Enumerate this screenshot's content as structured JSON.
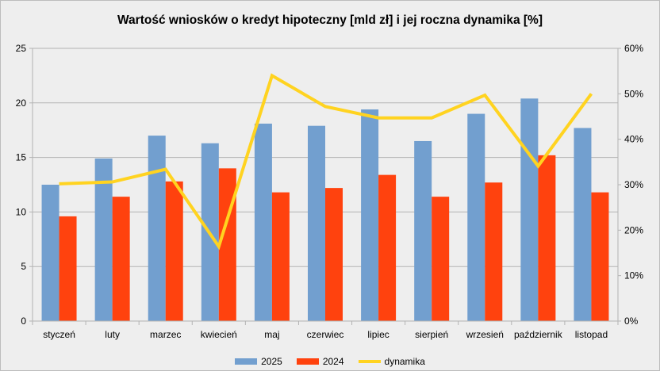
{
  "chart_data": {
    "type": "bar",
    "title": "Wartość wniosków o kredyt hipoteczny [mld zł] i jej roczna dynamika [%]",
    "categories": [
      "styczeń",
      "luty",
      "marzec",
      "kwiecień",
      "maj",
      "czerwiec",
      "lipiec",
      "sierpień",
      "wrzesień",
      "październik",
      "listopad"
    ],
    "series": [
      {
        "name": "2025",
        "type": "bar",
        "axis": "left",
        "color": "#729fcf",
        "values": [
          12.5,
          14.9,
          17.0,
          16.3,
          18.1,
          17.9,
          19.4,
          16.5,
          19.0,
          20.4,
          17.7
        ]
      },
      {
        "name": "2024",
        "type": "bar",
        "axis": "left",
        "color": "#ff420e",
        "values": [
          9.6,
          11.4,
          12.8,
          14.0,
          11.8,
          12.2,
          13.4,
          11.4,
          12.7,
          15.2,
          11.8
        ]
      },
      {
        "name": "dynamika",
        "type": "line",
        "axis": "right",
        "color": "#ffd320",
        "values": [
          30.2,
          30.6,
          33.4,
          16.4,
          54.0,
          47.2,
          44.7,
          44.7,
          49.7,
          34.1,
          50.0
        ]
      }
    ],
    "ylim": [
      0,
      25
    ],
    "yticks": [
      "0",
      "5",
      "10",
      "15",
      "20",
      "25"
    ],
    "y2lim": [
      0,
      60
    ],
    "y2ticks": [
      "0%",
      "10%",
      "20%",
      "30%",
      "40%",
      "50%",
      "60%"
    ],
    "grid": true,
    "legend": "bottom"
  }
}
